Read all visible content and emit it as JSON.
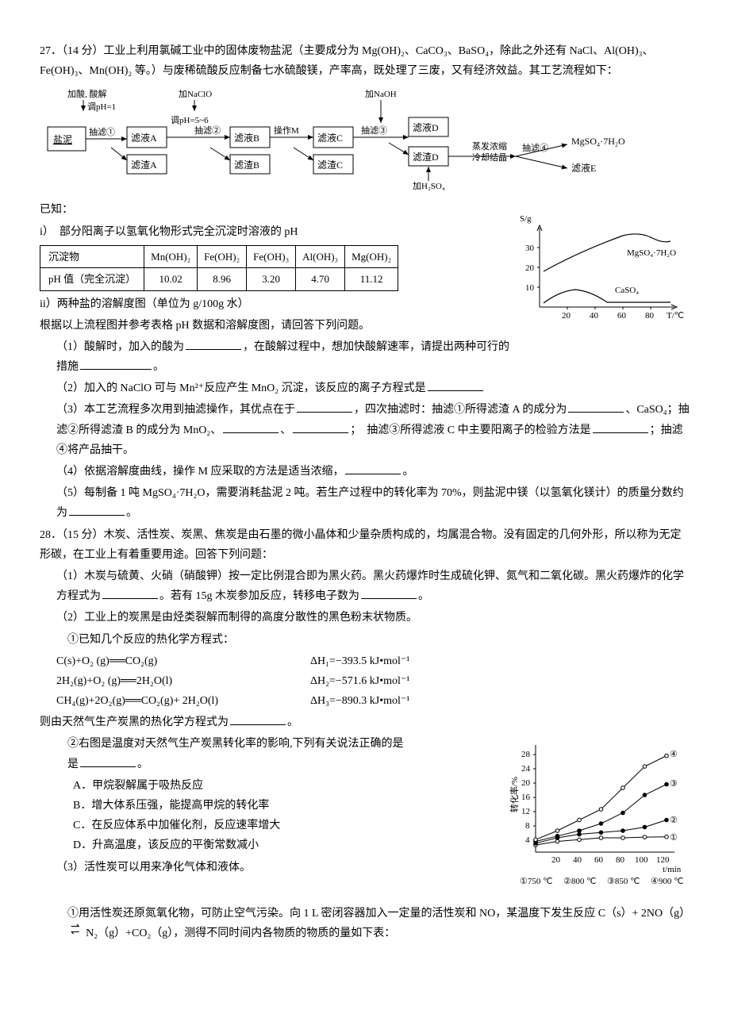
{
  "q27": {
    "number": "27．（14 分）",
    "stem1": "工业上利用氯碱工业中的固体废物盐泥（主要成分为 Mg(OH)₂、CaCO₃、BaSO₄，除此之外还有 NaCl、Al(OH)₃、Fe(OH)₃、Mn(OH)₂ 等。）与废稀硫酸反应制备七水硫酸镁，产率高，既处理了三废，又有经济效益。其工艺流程如下：",
    "flow": {
      "start": "盐泥",
      "top1": "加酸, 酸解",
      "top1b": "调pH=1",
      "a1": "抽滤①",
      "boxA": "滤液A",
      "resA": "滤渣A",
      "top2": "加NaClO",
      "top2b": "调pH=5~6",
      "a2": "抽滤②",
      "boxB": "滤液B",
      "resB": "滤渣B",
      "opM": "操作M",
      "boxC": "滤液C",
      "resC": "滤渣C",
      "top3": "加NaOH",
      "a3": "抽滤③",
      "boxD": "滤液D",
      "resD": "滤渣D",
      "bot3": "加H₂SO₄",
      "evap": "蒸发浓缩",
      "cool": "冷却结晶",
      "a4": "抽滤④",
      "prod": "MgSO₄·7H₂O",
      "boxE": "滤液E"
    },
    "known": "已知：",
    "known_i": "i）　部分阳离子以氢氧化物形式完全沉淀时溶液的 pH",
    "table": {
      "h1": "沉淀物",
      "h2": "Mn(OH)₂",
      "h3": "Fe(OH)₂",
      "h4": "Fe(OH)₃",
      "h5": "Al(OH)₃",
      "h6": "Mg(OH)₂",
      "r1": "pH 值（完全沉淀）",
      "v1": "10.02",
      "v2": "8.96",
      "v3": "3.20",
      "v4": "4.70",
      "v5": "11.12"
    },
    "known_ii": "ii）两种盐的溶解度图（单位为 g/100g 水）",
    "solubility": {
      "ylabel": "S/g",
      "xlabel": "T/℃",
      "yticks": [
        "10",
        "20",
        "30"
      ],
      "xticks": [
        "20",
        "40",
        "60",
        "80"
      ],
      "series1_label": "MgSO₄·7H₂O",
      "series2_label": "CaSO₄",
      "series1_color": "#000000",
      "series2_color": "#000000",
      "bg": "#ffffff"
    },
    "lead": "根据以上流程图并参考表格 pH 数据和溶解度图，请回答下列问题。",
    "p1a": "（1）酸解时，加入的酸为",
    "p1b": "，在酸解过程中，想加快酸解速率，请提出两种可行的措施",
    "p1c": "。",
    "p2a": "（2）加入的 NaClO 可与 Mn²⁺反应产生 MnO₂ 沉淀，该反应的离子方程式是",
    "p3a": "（3）本工艺流程多次用到抽滤操作，其优点在于",
    "p3b": "，四次抽滤时：抽滤①所得滤渣 A 的成分为",
    "p3c": "、CaSO₄；抽滤②所得滤渣 B 的成分为 MnO₂、",
    "p3d": "、",
    "p3e": "；　抽滤③所得滤液 C 中主要阳离子的检验方法是",
    "p3f": "；抽滤④将产品抽干。",
    "p4a": "（4）依据溶解度曲线，操作 M 应采取的方法是适当浓缩，",
    "p4b": "。",
    "p5a": "（5）每制备 1 吨 MgSO₄·7H₂O，需要消耗盐泥 2 吨。若生产过程中的转化率为 70%，则盐泥中镁（以氢氧化镁计）的质量分数约为",
    "p5b": "。"
  },
  "q28": {
    "number": "28．（15 分）",
    "stem": "木炭、活性炭、炭黑、焦炭是由石墨的微小晶体和少量杂质构成的，均属混合物。没有固定的几何外形，所以称为无定形碳，在工业上有着重要用途。回答下列问题：",
    "p1a": "（1）木炭与硫黄、火硝（硝酸钾）按一定比例混合即为黑火药。黑火药爆炸时生成硫化钾、氮气和二氧化碳。黑火药爆炸的化学方程式为",
    "p1b": "。若有 15g 木炭参加反应，转移电子数为",
    "p1c": "。",
    "p2": "（2）工业上的炭黑是由烃类裂解而制得的高度分散性的黑色粉末状物质。",
    "p2_1": "①已知几个反应的热化学方程式：",
    "eq1l": "C(s)+O₂ (g)══CO₂(g)",
    "eq1r": "ΔH₁=−393.5 kJ•mol⁻¹",
    "eq2l": "2H₂(g)+O₂ (g)══2H₂O(l)",
    "eq2r": "ΔH₂=−571.6 kJ•mol⁻¹",
    "eq3l": "CH₄(g)+2O₂(g)══CO₂(g)+ 2H₂O(l)",
    "eq3r": "ΔH₃=−890.3 kJ•mol⁻¹",
    "p2_1b": "则由天然气生产炭黑的热化学方程式为",
    "p2_1c": "。",
    "p2_2a": "②右图是温度对天然气生产炭黑转化率的影响,下列有关说法正确的是",
    "p2_2b": "。",
    "optA": "A．甲烷裂解属于吸热反应",
    "optB": "B．增大体系压强，能提高甲烷的转化率",
    "optC": "C．在反应体系中加催化剂，反应速率增大",
    "optD": "D．升高温度，该反应的平衡常数减小",
    "conversion": {
      "ylabel": "转化率/%",
      "xlabel": "t/min",
      "yticks": [
        "4",
        "8",
        "12",
        "16",
        "20",
        "24",
        "28"
      ],
      "xticks": [
        "20",
        "40",
        "60",
        "80",
        "100",
        "120"
      ],
      "legend": {
        "l1": "①750 ℃",
        "l2": "②800 ℃",
        "l3": "③850 ℃",
        "l4": "④900 ℃"
      },
      "series": {
        "s1": {
          "points": [
            [
              0,
              2
            ],
            [
              20,
              3
            ],
            [
              40,
              3.5
            ],
            [
              60,
              4
            ],
            [
              80,
              4
            ],
            [
              100,
              4.2
            ],
            [
              120,
              4.3
            ]
          ],
          "marker": "circle-open"
        },
        "s2": {
          "points": [
            [
              0,
              2.5
            ],
            [
              20,
              4
            ],
            [
              40,
              5
            ],
            [
              60,
              5.5
            ],
            [
              80,
              6
            ],
            [
              100,
              7
            ],
            [
              120,
              9
            ]
          ],
          "marker": "circle-fill"
        },
        "s3": {
          "points": [
            [
              0,
              3
            ],
            [
              20,
              4.5
            ],
            [
              40,
              6
            ],
            [
              60,
              8
            ],
            [
              80,
              11
            ],
            [
              100,
              16
            ],
            [
              120,
              19
            ]
          ],
          "marker": "circle-fill"
        },
        "s4": {
          "points": [
            [
              0,
              3.5
            ],
            [
              20,
              6
            ],
            [
              40,
              9
            ],
            [
              60,
              12
            ],
            [
              80,
              18
            ],
            [
              100,
              24
            ],
            [
              120,
              27
            ]
          ],
          "marker": "circle-open"
        }
      },
      "axis_color": "#000000",
      "bg": "#ffffff"
    },
    "p3": "（3）活性炭可以用来净化气体和液体。",
    "p3_1a": "①用活性炭还原氮氧化物，可防止空气污染。向 1 L 密闭容器加入一定量的活性炭和 NO，某温度下发生反应 C（s）+ 2NO（g）",
    "p3_1eq": "⇌",
    "p3_1b": " N₂（g）+CO₂（g），测得不同时间内各物质的物质的量如下表："
  }
}
